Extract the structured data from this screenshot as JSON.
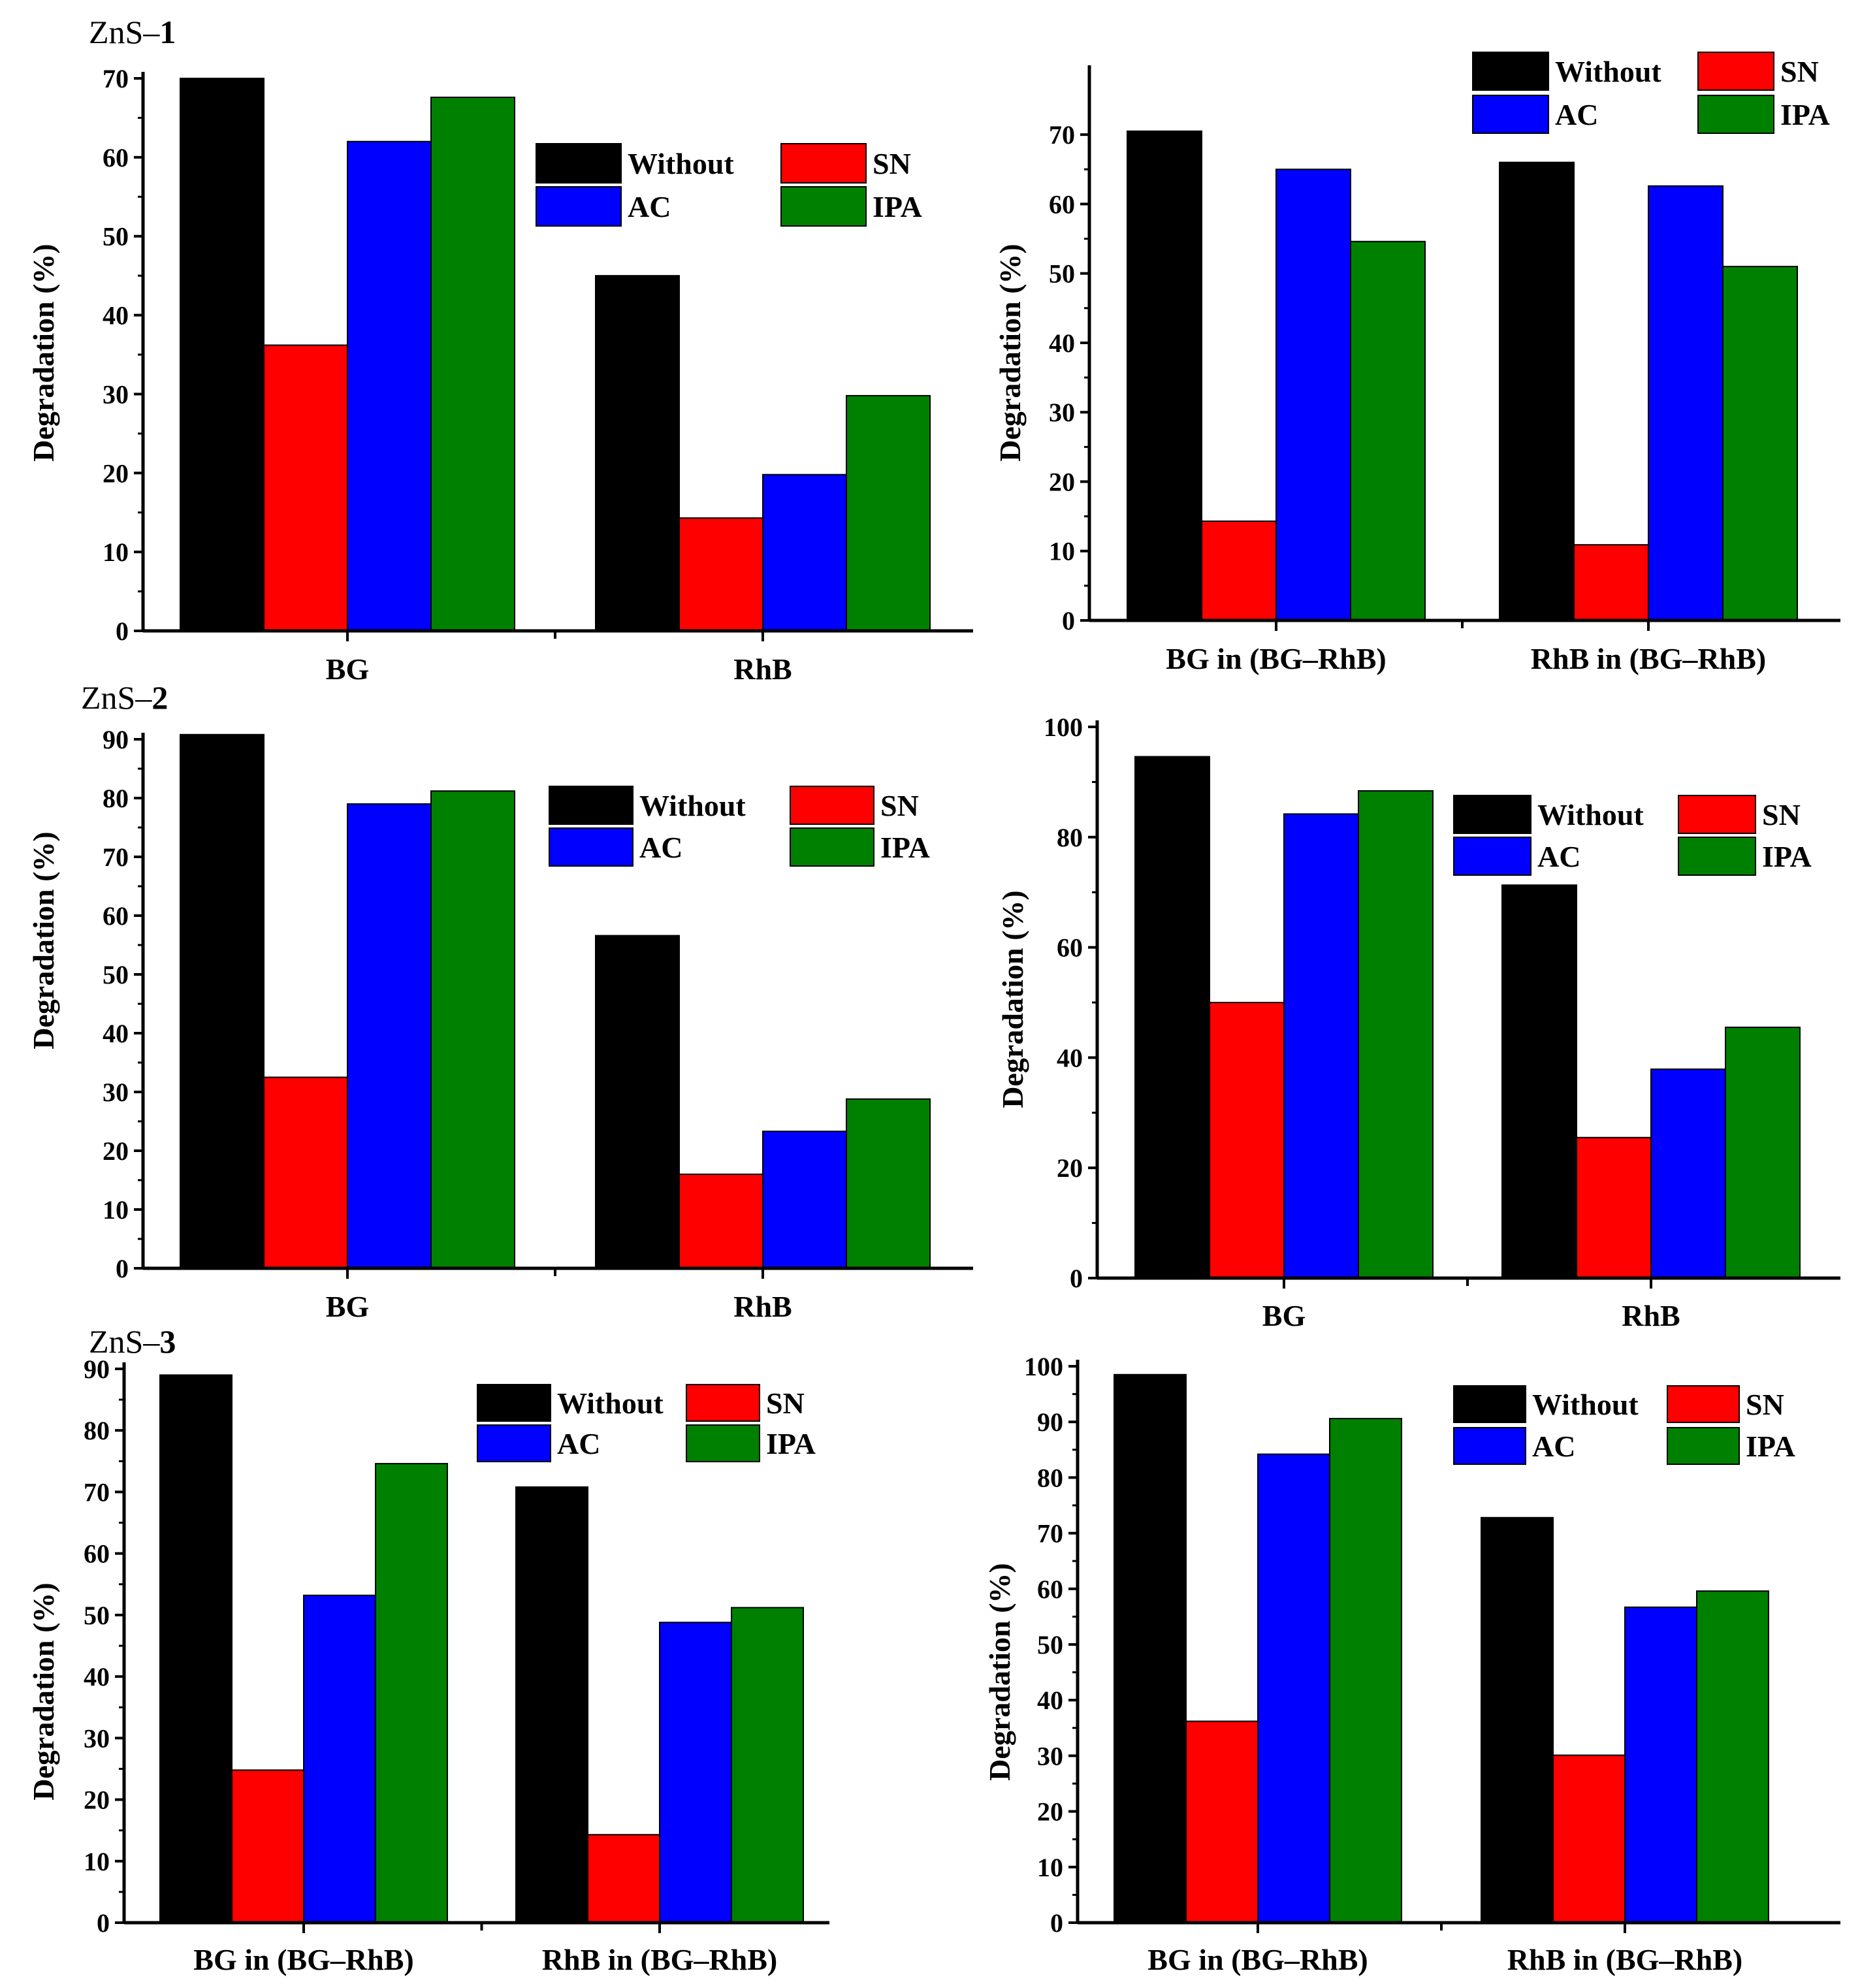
{
  "colors": {
    "Without": "#000000",
    "SN": "#ff0000",
    "AC": "#0000ff",
    "IPA": "#008000"
  },
  "chart_data": [
    {
      "type": "bar",
      "panel_label": "ZnS–",
      "panel_number": "1",
      "ylabel": "Degradation (%)",
      "categories": [
        "BG",
        "RhB"
      ],
      "ylim": [
        0,
        70
      ],
      "yticks": [
        0,
        10,
        20,
        30,
        40,
        50,
        60,
        70
      ],
      "legend_position": "top-right",
      "series": [
        {
          "name": "Without",
          "values": [
            70.0,
            45.0
          ]
        },
        {
          "name": "SN",
          "values": [
            36.2,
            14.3
          ]
        },
        {
          "name": "AC",
          "values": [
            62.0,
            19.8
          ]
        },
        {
          "name": "IPA",
          "values": [
            67.6,
            29.8
          ]
        }
      ]
    },
    {
      "type": "bar",
      "panel_label": "",
      "panel_number": "",
      "ylabel": "Degradation (%)",
      "categories": [
        "BG in (BG–RhB)",
        "RhB in (BG–RhB)"
      ],
      "ylim": [
        0,
        75
      ],
      "yticks": [
        0,
        10,
        20,
        30,
        40,
        50,
        60,
        70
      ],
      "legend_position": "top-right",
      "series": [
        {
          "name": "Without",
          "values": [
            70.5,
            66.0
          ]
        },
        {
          "name": "SN",
          "values": [
            14.3,
            10.9
          ]
        },
        {
          "name": "AC",
          "values": [
            65.0,
            62.6
          ]
        },
        {
          "name": "IPA",
          "values": [
            54.6,
            51.0
          ]
        }
      ]
    },
    {
      "type": "bar",
      "panel_label": "ZnS–",
      "panel_number": "2",
      "ylabel": "Degradation (%)",
      "categories": [
        "BG",
        "RhB"
      ],
      "ylim": [
        0,
        90
      ],
      "yticks": [
        0,
        10,
        20,
        30,
        40,
        50,
        60,
        70,
        80,
        90
      ],
      "legend_position": "top-right",
      "series": [
        {
          "name": "Without",
          "values": [
            90.8,
            56.6
          ]
        },
        {
          "name": "SN",
          "values": [
            32.5,
            16.0
          ]
        },
        {
          "name": "AC",
          "values": [
            79.0,
            23.3
          ]
        },
        {
          "name": "IPA",
          "values": [
            81.2,
            28.8
          ]
        }
      ]
    },
    {
      "type": "bar",
      "panel_label": "",
      "panel_number": "",
      "ylabel": "Degradation (%)",
      "categories": [
        "BG",
        "RhB"
      ],
      "ylim": [
        0,
        100
      ],
      "yticks": [
        0,
        20,
        40,
        60,
        80,
        100
      ],
      "legend_position": "top-right",
      "series": [
        {
          "name": "Without",
          "values": [
            94.6,
            71.3
          ]
        },
        {
          "name": "SN",
          "values": [
            50.0,
            25.5
          ]
        },
        {
          "name": "AC",
          "values": [
            84.2,
            37.9
          ]
        },
        {
          "name": "IPA",
          "values": [
            88.4,
            45.5
          ]
        }
      ]
    },
    {
      "type": "bar",
      "panel_label": "ZnS–",
      "panel_number": "3",
      "ylabel": "Degradation (%)",
      "categories": [
        "BG in (BG–RhB)",
        "RhB in (BG–RhB)"
      ],
      "ylim": [
        0,
        90
      ],
      "yticks": [
        0,
        10,
        20,
        30,
        40,
        50,
        60,
        70,
        80,
        90
      ],
      "legend_position": "top-right",
      "series": [
        {
          "name": "Without",
          "values": [
            89.0,
            70.8
          ]
        },
        {
          "name": "SN",
          "values": [
            24.8,
            14.3
          ]
        },
        {
          "name": "AC",
          "values": [
            53.2,
            48.8
          ]
        },
        {
          "name": "IPA",
          "values": [
            74.6,
            51.2
          ]
        }
      ]
    },
    {
      "type": "bar",
      "panel_label": "",
      "panel_number": "",
      "ylabel": "Degradation (%)",
      "categories": [
        "BG in (BG–RhB)",
        "RhB in (BG–RhB)"
      ],
      "ylim": [
        0,
        100
      ],
      "yticks": [
        0,
        10,
        20,
        30,
        40,
        50,
        60,
        70,
        80,
        90,
        100
      ],
      "legend_position": "top-right",
      "series": [
        {
          "name": "Without",
          "values": [
            98.5,
            72.8
          ]
        },
        {
          "name": "SN",
          "values": [
            36.2,
            30.1
          ]
        },
        {
          "name": "AC",
          "values": [
            84.2,
            56.7
          ]
        },
        {
          "name": "IPA",
          "values": [
            90.6,
            59.6
          ]
        }
      ]
    }
  ]
}
